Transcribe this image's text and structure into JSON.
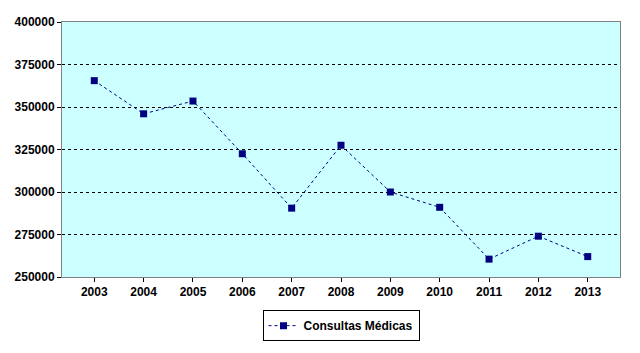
{
  "chart_data": {
    "type": "line",
    "categories": [
      "2003",
      "2004",
      "2005",
      "2006",
      "2007",
      "2008",
      "2009",
      "2010",
      "2011",
      "2012",
      "2013"
    ],
    "series": [
      {
        "name": "Consultas Médicas",
        "color": "#000080",
        "marker": "square",
        "line_style": "dot",
        "values": [
          365500,
          346000,
          353500,
          322500,
          290500,
          327500,
          300000,
          291000,
          260500,
          274000,
          262000
        ]
      }
    ],
    "ylim": [
      250000,
      400000
    ],
    "yticks": [
      250000,
      275000,
      300000,
      325000,
      350000,
      375000,
      400000
    ],
    "grid": true,
    "legend": "bottom"
  }
}
